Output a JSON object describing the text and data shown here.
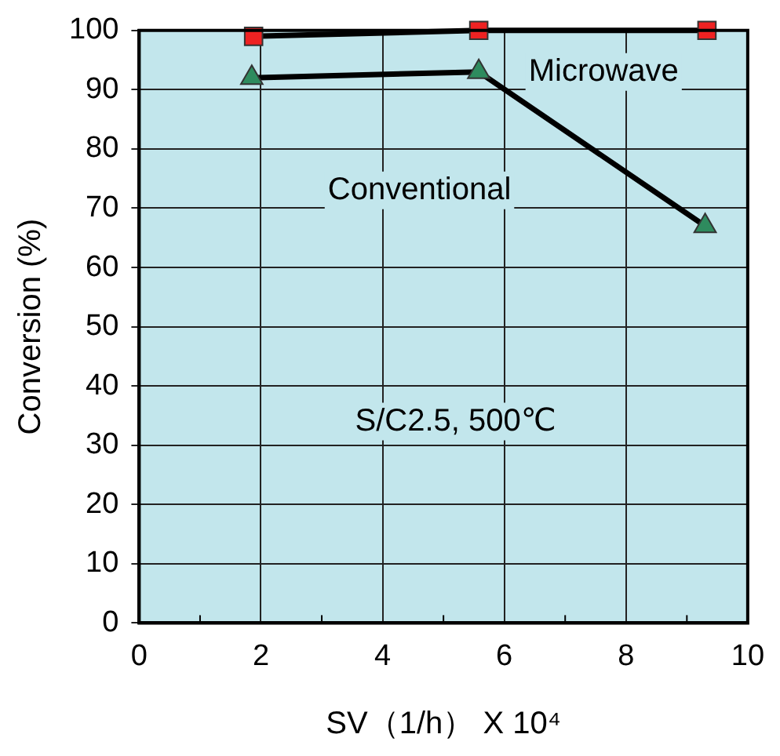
{
  "chart_data": {
    "type": "line",
    "xlabel": "SV（1/h） X 10⁴",
    "ylabel": "Conversion (%)",
    "series": [
      {
        "name": "Microwave",
        "color": "#ee2222",
        "marker": "square",
        "x": [
          1.88,
          5.58,
          9.33
        ],
        "values": [
          99,
          100,
          100
        ]
      },
      {
        "name": "Conventional",
        "color": "#2e8b5e",
        "marker": "triangle",
        "x": [
          1.85,
          5.58,
          9.3
        ],
        "values": [
          92,
          93,
          67
        ]
      }
    ],
    "annotations": [
      "S/C2.5, 500℃"
    ],
    "xlim": [
      0,
      10
    ],
    "xticks": [
      0,
      2,
      4,
      6,
      8,
      10
    ],
    "ylim": [
      0,
      100
    ],
    "yticks": [
      0,
      10,
      20,
      30,
      40,
      50,
      60,
      70,
      80,
      90,
      100
    ],
    "grid": true,
    "legend": false
  }
}
